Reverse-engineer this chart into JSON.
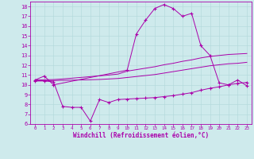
{
  "bg_color": "#ceeaec",
  "line_color": "#aa00aa",
  "xlabel": "Windchill (Refroidissement éolien,°C)",
  "xlim": [
    -0.5,
    23.5
  ],
  "ylim": [
    6,
    18.5
  ],
  "yticks": [
    6,
    7,
    8,
    9,
    10,
    11,
    12,
    13,
    14,
    15,
    16,
    17,
    18
  ],
  "xticks": [
    0,
    1,
    2,
    3,
    4,
    5,
    6,
    7,
    8,
    9,
    10,
    11,
    12,
    13,
    14,
    15,
    16,
    17,
    18,
    19,
    20,
    21,
    22,
    23
  ],
  "series": [
    {
      "x": [
        0,
        1,
        2,
        10,
        11,
        12,
        13,
        14,
        15,
        16,
        17,
        18,
        19,
        20,
        21,
        22,
        23
      ],
      "y": [
        10.5,
        10.9,
        10.0,
        11.5,
        15.2,
        16.6,
        17.8,
        18.2,
        17.8,
        17.0,
        17.3,
        14.0,
        13.0,
        10.2,
        10.0,
        10.5,
        9.9
      ],
      "marker": true
    },
    {
      "x": [
        0,
        1,
        2,
        3,
        4,
        5,
        6,
        7,
        8,
        9,
        10,
        11,
        12,
        13,
        14,
        15,
        16,
        17,
        18,
        19,
        20,
        21,
        22,
        23
      ],
      "y": [
        10.5,
        10.52,
        10.54,
        10.6,
        10.68,
        10.76,
        10.84,
        10.92,
        11.0,
        11.1,
        11.4,
        11.55,
        11.7,
        11.85,
        12.05,
        12.2,
        12.4,
        12.55,
        12.75,
        12.9,
        13.0,
        13.1,
        13.15,
        13.2
      ],
      "marker": false
    },
    {
      "x": [
        0,
        1,
        2,
        3,
        4,
        5,
        6,
        7,
        8,
        9,
        10,
        11,
        12,
        13,
        14,
        15,
        16,
        17,
        18,
        19,
        20,
        21,
        22,
        23
      ],
      "y": [
        10.4,
        10.42,
        10.44,
        10.46,
        10.48,
        10.5,
        10.52,
        10.55,
        10.6,
        10.65,
        10.75,
        10.85,
        10.95,
        11.05,
        11.2,
        11.35,
        11.5,
        11.65,
        11.8,
        11.95,
        12.05,
        12.15,
        12.2,
        12.3
      ],
      "marker": false
    },
    {
      "x": [
        0,
        1,
        2,
        3,
        4,
        5,
        6,
        7,
        8,
        9,
        10,
        11,
        12,
        13,
        14,
        15,
        16,
        17,
        18,
        19,
        20,
        21,
        22,
        23
      ],
      "y": [
        10.4,
        10.4,
        10.3,
        7.8,
        7.7,
        7.7,
        6.3,
        8.5,
        8.2,
        8.5,
        8.55,
        8.6,
        8.65,
        8.7,
        8.8,
        8.9,
        9.05,
        9.2,
        9.45,
        9.65,
        9.8,
        10.0,
        10.15,
        10.25
      ],
      "marker": true
    }
  ]
}
